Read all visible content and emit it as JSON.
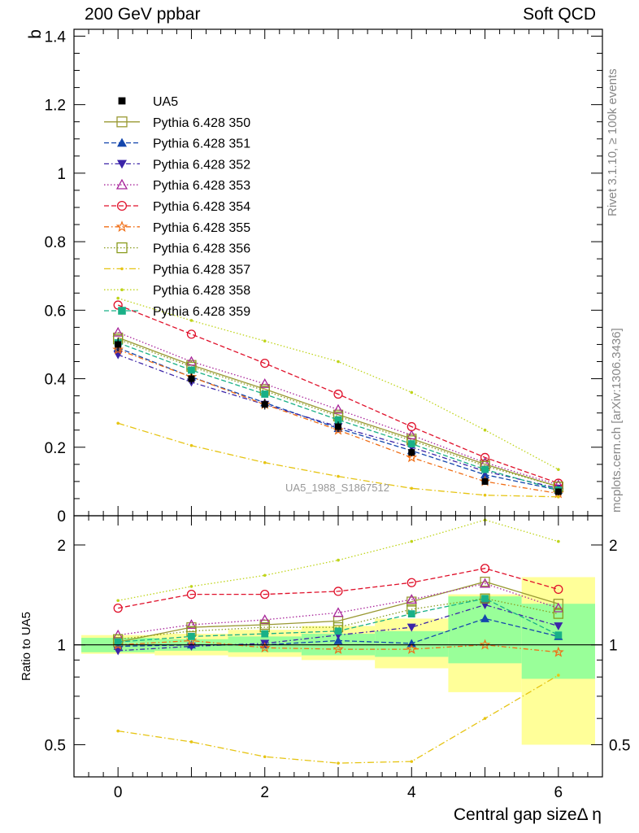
{
  "header": {
    "title_left": "200 GeV ppbar",
    "title_right": "Soft QCD",
    "side_rivet": "Rivet 3.1.10, ≥ 100k events",
    "side_mcplots": "mcplots.cern.ch [arXiv:1306.3436]",
    "watermark": "UA5_1988_S1867512"
  },
  "chart_data": [
    {
      "panel": "main",
      "type": "line",
      "ylabel": "b",
      "xlabel": "",
      "xlim": [
        -0.6,
        6.6
      ],
      "ylim": [
        0,
        1.42
      ],
      "y_ticks": [
        0,
        0.2,
        0.4,
        0.6,
        0.8,
        1,
        1.2,
        1.4
      ],
      "y_tick_labels": [
        "0",
        "0.2",
        "0.4",
        "0.6",
        "0.8",
        "1",
        "1.2",
        "1.4"
      ],
      "legend_position": "top-left",
      "x": [
        0,
        1,
        2,
        3,
        4,
        5,
        6
      ],
      "data": {
        "name": "UA5",
        "values": [
          0.5,
          0.4,
          0.325,
          0.26,
          0.185,
          0.1,
          0.07
        ],
        "errors": [
          0.02,
          0.015,
          0.015,
          0.015,
          0.012,
          0.01,
          0.01
        ]
      },
      "series": [
        {
          "name": "Pythia 6.428 350",
          "color": "#999933",
          "dash": "",
          "marker": "open-square",
          "values": [
            0.52,
            0.44,
            0.37,
            0.295,
            0.225,
            0.15,
            0.085
          ]
        },
        {
          "name": "Pythia 6.428 351",
          "color": "#1447ad",
          "dash": "6,3",
          "marker": "filled-triangle-up",
          "values": [
            0.49,
            0.405,
            0.33,
            0.255,
            0.19,
            0.12,
            0.075
          ]
        },
        {
          "name": "Pythia 6.428 352",
          "color": "#3b24a8",
          "dash": "6,3,1.5,3",
          "marker": "filled-triangle-down",
          "values": [
            0.47,
            0.39,
            0.325,
            0.26,
            0.2,
            0.13,
            0.08
          ]
        },
        {
          "name": "Pythia 6.428 353",
          "color": "#a8249a",
          "dash": "1.5,2.5",
          "marker": "open-triangle-up",
          "values": [
            0.535,
            0.45,
            0.385,
            0.31,
            0.235,
            0.155,
            0.09
          ]
        },
        {
          "name": "Pythia 6.428 354",
          "color": "#e0112b",
          "dash": "6,3",
          "marker": "open-circle",
          "values": [
            0.615,
            0.53,
            0.445,
            0.355,
            0.26,
            0.17,
            0.095
          ]
        },
        {
          "name": "Pythia 6.428 355",
          "color": "#f06e16",
          "dash": "6,3,1.5,3",
          "marker": "open-star",
          "values": [
            0.485,
            0.405,
            0.325,
            0.25,
            0.17,
            0.1,
            0.065
          ]
        },
        {
          "name": "Pythia 6.428 356",
          "color": "#8a9c1f",
          "dash": "1.5,2.5",
          "marker": "open-square",
          "values": [
            0.515,
            0.435,
            0.365,
            0.29,
            0.22,
            0.145,
            0.085
          ]
        },
        {
          "name": "Pythia 6.428 357",
          "color": "#e6c413",
          "dash": "8,3,1.5,3",
          "marker": "dot",
          "values": [
            0.27,
            0.205,
            0.155,
            0.115,
            0.08,
            0.06,
            0.055
          ]
        },
        {
          "name": "Pythia 6.428 358",
          "color": "#bfd41a",
          "dash": "1.5,2.5",
          "marker": "dot",
          "values": [
            0.635,
            0.57,
            0.51,
            0.45,
            0.36,
            0.25,
            0.135
          ]
        },
        {
          "name": "Pythia 6.428 359",
          "color": "#19b087",
          "dash": "6,3",
          "marker": "filled-square",
          "values": [
            0.505,
            0.425,
            0.355,
            0.28,
            0.21,
            0.135,
            0.075
          ]
        }
      ]
    },
    {
      "panel": "ratio",
      "type": "line",
      "ylabel": "Ratio to UA5",
      "xlabel": "Central gap sizeΔ η",
      "xlim": [
        -0.6,
        6.6
      ],
      "ylim": [
        0.4,
        2.45
      ],
      "y_scale": "log",
      "x_ticks": [
        0,
        2,
        4,
        6
      ],
      "x_tick_labels": [
        "0",
        "2",
        "4",
        "6"
      ],
      "y_ticks": [
        0.5,
        1,
        2
      ],
      "y_tick_labels": [
        "0.5",
        "1",
        "2"
      ],
      "x": [
        0,
        1,
        2,
        3,
        4,
        5,
        6
      ],
      "band_bins": [
        [
          -0.5,
          0.5
        ],
        [
          0.5,
          1.5
        ],
        [
          1.5,
          2.5
        ],
        [
          2.5,
          3.5
        ],
        [
          3.5,
          4.5
        ],
        [
          4.5,
          5.5
        ],
        [
          5.5,
          6.5
        ]
      ],
      "band_inner": [
        [
          0.95,
          1.05
        ],
        [
          0.96,
          1.04
        ],
        [
          0.95,
          1.06
        ],
        [
          0.93,
          1.08
        ],
        [
          0.92,
          1.1
        ],
        [
          0.88,
          1.4
        ],
        [
          0.79,
          1.33
        ]
      ],
      "band_outer": [
        [
          0.94,
          1.07
        ],
        [
          0.93,
          1.08
        ],
        [
          0.92,
          1.11
        ],
        [
          0.9,
          1.14
        ],
        [
          0.85,
          1.2
        ],
        [
          0.72,
          1.42
        ],
        [
          0.5,
          1.6
        ]
      ],
      "series": [
        {
          "name": "Pythia 6.428 350",
          "values": [
            1.02,
            1.13,
            1.15,
            1.18,
            1.35,
            1.55,
            1.33
          ]
        },
        {
          "name": "Pythia 6.428 351",
          "values": [
            0.99,
            1.0,
            1.0,
            1.03,
            1.01,
            1.2,
            1.06
          ]
        },
        {
          "name": "Pythia 6.428 352",
          "values": [
            0.96,
            0.99,
            1.01,
            1.07,
            1.13,
            1.32,
            1.14
          ]
        },
        {
          "name": "Pythia 6.428 353",
          "values": [
            1.07,
            1.15,
            1.19,
            1.25,
            1.37,
            1.53,
            1.29
          ]
        },
        {
          "name": "Pythia 6.428 354",
          "values": [
            1.29,
            1.42,
            1.42,
            1.45,
            1.54,
            1.7,
            1.47
          ]
        },
        {
          "name": "Pythia 6.428 355",
          "values": [
            1.0,
            1.03,
            0.98,
            0.97,
            0.97,
            1.0,
            0.95
          ]
        },
        {
          "name": "Pythia 6.428 356",
          "values": [
            1.04,
            1.1,
            1.13,
            1.13,
            1.28,
            1.38,
            1.24
          ]
        },
        {
          "name": "Pythia 6.428 357",
          "values": [
            0.55,
            0.51,
            0.46,
            0.44,
            0.445,
            0.6,
            0.81
          ]
        },
        {
          "name": "Pythia 6.428 358",
          "values": [
            1.36,
            1.5,
            1.62,
            1.8,
            2.05,
            2.38,
            2.05
          ]
        },
        {
          "name": "Pythia 6.428 359",
          "values": [
            1.02,
            1.06,
            1.08,
            1.1,
            1.24,
            1.38,
            1.07
          ]
        }
      ]
    }
  ]
}
